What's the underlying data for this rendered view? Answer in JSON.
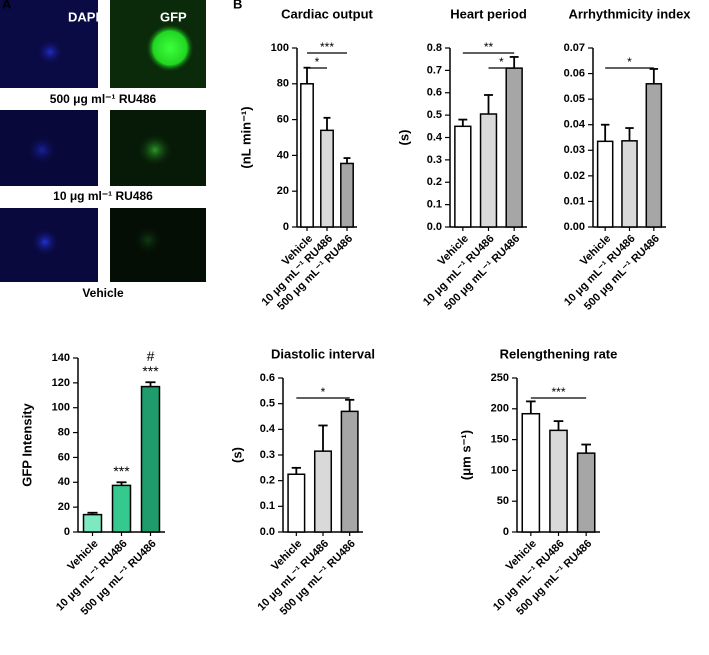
{
  "image_panel": {
    "panel_letter": "A",
    "channels": [
      "DAPI",
      "GFP"
    ],
    "rows": [
      "500 μg ml⁻¹ RU486",
      "10 μg ml⁻¹ RU486",
      "Vehicle"
    ]
  },
  "panel_b_letter": "B",
  "chart_data": [
    {
      "type": "bar",
      "title": "Cardiac output",
      "ylabel": "(nL min⁻¹)",
      "categories": [
        "Vehicle",
        "10 μg mL⁻¹ RU486",
        "500 μg mL⁻¹ RU486"
      ],
      "values": [
        80,
        54,
        35.5
      ],
      "errors": [
        9,
        7,
        3
      ],
      "colors": [
        "#ffffff",
        "#d9d9d9",
        "#a6a6a6"
      ],
      "ylim": [
        0,
        100
      ],
      "yticks": [
        0,
        20,
        40,
        60,
        80,
        100
      ],
      "significance": [
        {
          "label": "*",
          "between": [
            "Vehicle",
            "10 μg mL⁻¹ RU486"
          ]
        },
        {
          "label": "***",
          "between": [
            "Vehicle",
            "500 μg mL⁻¹ RU486"
          ]
        }
      ]
    },
    {
      "type": "bar",
      "title": "Heart  period",
      "ylabel": "(s)",
      "categories": [
        "Vehicle",
        "10 μg mL⁻¹ RU486",
        "500 μg mL⁻¹ RU486"
      ],
      "values": [
        0.45,
        0.505,
        0.71
      ],
      "errors": [
        0.03,
        0.085,
        0.05
      ],
      "colors": [
        "#ffffff",
        "#d9d9d9",
        "#a6a6a6"
      ],
      "ylim": [
        0,
        0.8
      ],
      "yticks": [
        {
          "value": 0,
          "label": "0.0"
        },
        0.1,
        0.2,
        0.3,
        0.4,
        0.5,
        0.6,
        0.7,
        0.8
      ],
      "significance": [
        {
          "label": "*",
          "between": [
            "10 μg mL⁻¹ RU486",
            "500 μg mL⁻¹ RU486"
          ]
        },
        {
          "label": "**",
          "between": [
            "Vehicle",
            "500 μg mL⁻¹ RU486"
          ]
        }
      ]
    },
    {
      "type": "bar",
      "title": "Arrhythmicity index",
      "categories": [
        "Vehicle",
        "10 μg mL⁻¹ RU486",
        "500 μg mL⁻¹ RU486"
      ],
      "values": [
        0.0335,
        0.0337,
        0.056
      ],
      "errors": [
        0.0065,
        0.005,
        0.0058
      ],
      "colors": [
        "#ffffff",
        "#d9d9d9",
        "#a6a6a6"
      ],
      "ylim": [
        0,
        0.07
      ],
      "yticks": [
        {
          "value": 0,
          "label": "0.00"
        },
        {
          "value": 0.01,
          "label": "0.01"
        },
        {
          "value": 0.02,
          "label": "0.02"
        },
        {
          "value": 0.03,
          "label": "0.03"
        },
        {
          "value": 0.04,
          "label": "0.04"
        },
        {
          "value": 0.05,
          "label": "0.05"
        },
        {
          "value": 0.06,
          "label": "0.06"
        },
        {
          "value": 0.07,
          "label": "0.07"
        }
      ],
      "significance": [
        {
          "label": "*",
          "between": [
            "Vehicle",
            "500 μg mL⁻¹ RU486"
          ]
        }
      ]
    },
    {
      "type": "bar",
      "ylabel": "GFP  Intensity",
      "categories": [
        "Vehicle",
        "10 μg mL⁻¹ RU486",
        "500 μg mL⁻¹ RU486"
      ],
      "values": [
        14,
        37.5,
        117
      ],
      "errors": [
        1.5,
        2.5,
        3.5
      ],
      "colors": [
        "#7ee8c0",
        "#35c98f",
        "#1f9c6b"
      ],
      "ylim": [
        0,
        140
      ],
      "yticks": [
        0,
        20,
        40,
        60,
        80,
        100,
        120,
        140
      ],
      "bar_annotations": [
        {
          "category": "10 μg mL⁻¹ RU486",
          "text": [
            "***"
          ]
        },
        {
          "category": "500 μg mL⁻¹ RU486",
          "text": [
            "***",
            "#"
          ]
        }
      ]
    },
    {
      "type": "bar",
      "title": "Diastolic interval",
      "ylabel": "(s)",
      "categories": [
        "Vehicle",
        "10 μg mL⁻¹ RU486",
        "500 μg mL⁻¹ RU486"
      ],
      "values": [
        0.225,
        0.315,
        0.47
      ],
      "errors": [
        0.025,
        0.1,
        0.045
      ],
      "colors": [
        "#ffffff",
        "#d9d9d9",
        "#a6a6a6"
      ],
      "ylim": [
        0,
        0.6
      ],
      "yticks": [
        {
          "value": 0,
          "label": "0.0"
        },
        0.1,
        0.2,
        0.3,
        0.4,
        0.5,
        0.6
      ],
      "significance": [
        {
          "label": "*",
          "between": [
            "Vehicle",
            "500 μg mL⁻¹ RU486"
          ]
        }
      ]
    },
    {
      "type": "bar",
      "title": "Relengthening rate",
      "ylabel": "(μm s⁻¹)",
      "categories": [
        "Vehicle",
        "10 μg mL⁻¹ RU486",
        "500 μg mL⁻¹ RU486"
      ],
      "values": [
        192,
        165,
        128
      ],
      "errors": [
        20,
        15,
        14
      ],
      "colors": [
        "#ffffff",
        "#d9d9d9",
        "#a6a6a6"
      ],
      "ylim": [
        0,
        250
      ],
      "yticks": [
        0,
        50,
        100,
        150,
        200,
        250
      ],
      "significance": [
        {
          "label": "***",
          "between": [
            "Vehicle",
            "500 μg mL⁻¹ RU486"
          ]
        }
      ]
    }
  ]
}
